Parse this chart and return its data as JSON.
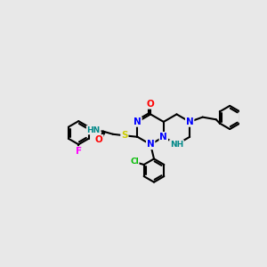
{
  "background_color": "#e8e8e8",
  "atom_colors": {
    "N": "#0000FF",
    "O": "#FF0000",
    "S": "#CCCC00",
    "F": "#FF00FF",
    "Cl": "#00BB00",
    "NH": "#008888"
  },
  "bond_color": "#000000",
  "bond_lw": 1.5
}
